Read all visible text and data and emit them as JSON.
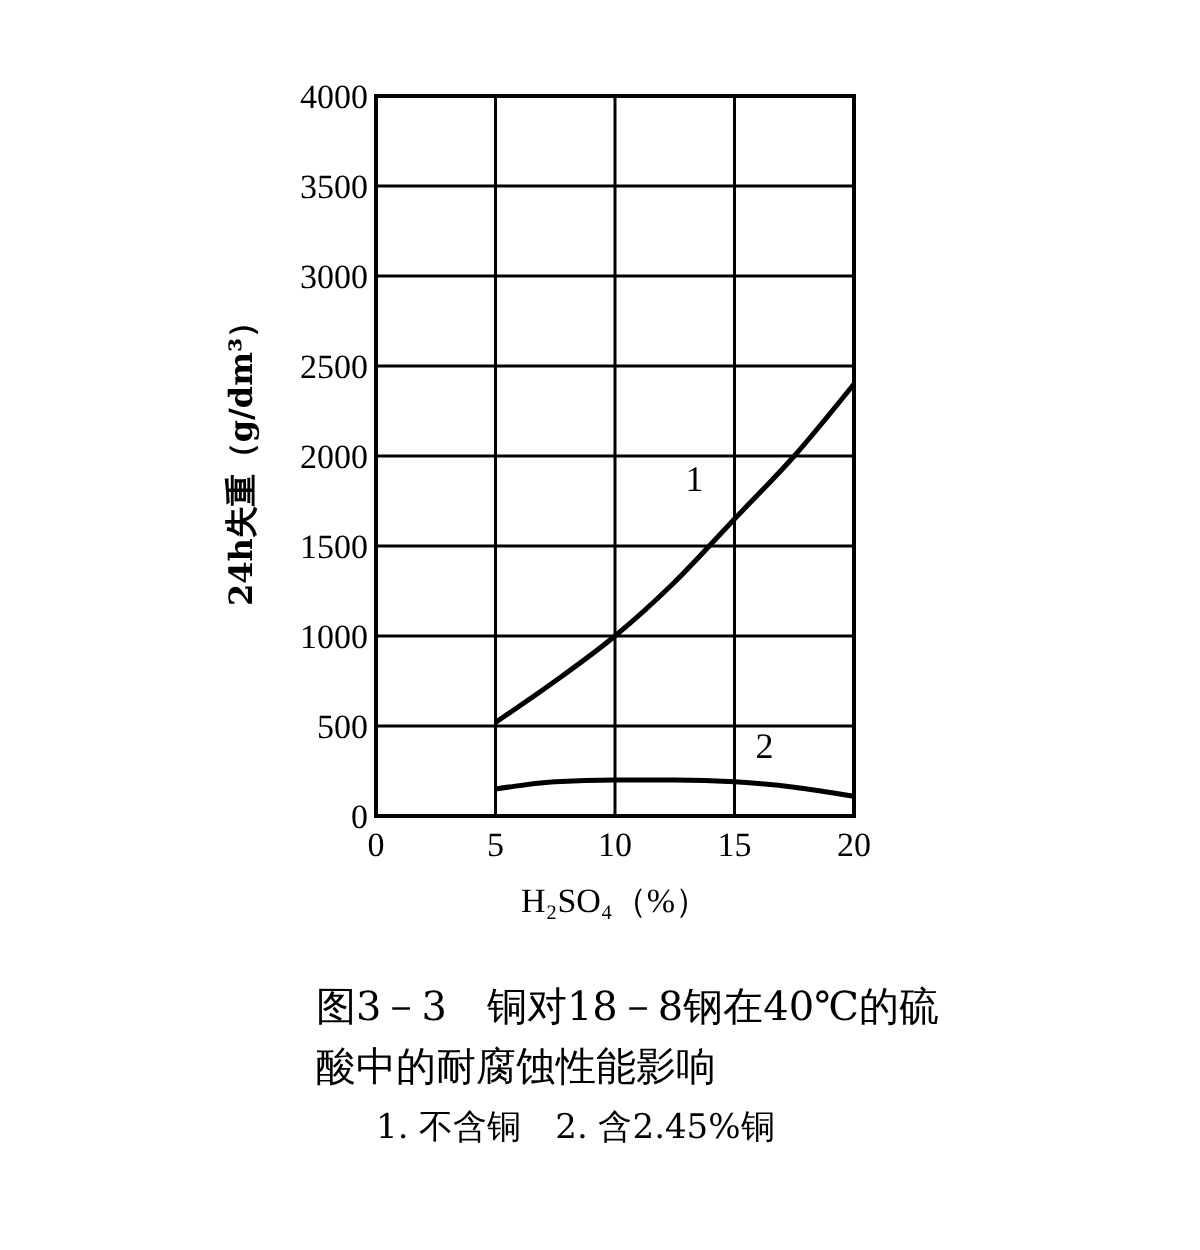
{
  "chart_data": {
    "type": "line",
    "title": "图3－3　铜对18－8钢在40℃的硫酸中的耐腐蚀性能影响",
    "annotations": [
      "1. 不含铜　2. 含2.45%铜"
    ],
    "xlabel": "H₂SO₄（%）",
    "ylabel": "24h失重（g/dm³）",
    "x": [
      5,
      7.5,
      10,
      12.5,
      15,
      17.5,
      20
    ],
    "series": [
      {
        "name": "1",
        "color": "#000000",
        "values": [
          520,
          750,
          1000,
          1300,
          1650,
          2000,
          2400
        ]
      },
      {
        "name": "2",
        "color": "#000000",
        "values": [
          150,
          190,
          200,
          200,
          190,
          160,
          110
        ]
      }
    ],
    "xlim": [
      0,
      20
    ],
    "xticks": [
      0,
      5,
      10,
      15,
      20
    ],
    "ylim": [
      0,
      4000
    ],
    "yticks": [
      0,
      500,
      1000,
      1500,
      2000,
      2500,
      3000,
      3500,
      4000
    ],
    "grid": true,
    "marker": "none",
    "line_style": "solid"
  }
}
